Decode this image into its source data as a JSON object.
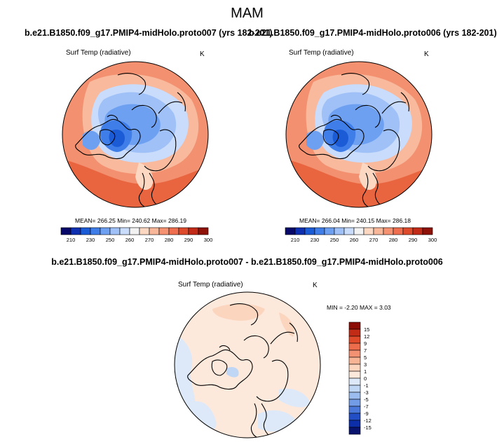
{
  "season": "MAM",
  "panels": [
    {
      "case_title": "b.e21.B1850.f09_g17.PMIP4-midHolo.proto007 (yrs 182-201)",
      "variable": "Surf Temp (radiative)",
      "units": "K",
      "stats": "MEAN= 266.25  Min= 240.62  Max= 286.19"
    },
    {
      "case_title": "b.e21.B1850.f09_g17.PMIP4-midHolo.proto006 (yrs 182-201)",
      "variable": "Surf Temp (radiative)",
      "units": "K",
      "stats": "MEAN= 266.04  Min= 240.15  Max= 286.18"
    }
  ],
  "absolute_colorbar": {
    "colors": [
      "#08086b",
      "#0d2fb0",
      "#1c5bd6",
      "#3f7ee8",
      "#6ea0f2",
      "#9fc1f8",
      "#c9dcfb",
      "#f2f2f2",
      "#fcd8c3",
      "#f9b79a",
      "#f59272",
      "#ee6e4f",
      "#de4a2c",
      "#c22b17",
      "#8f1209"
    ],
    "labels": [
      "210",
      "230",
      "250",
      "260",
      "270",
      "280",
      "290",
      "300"
    ]
  },
  "difference": {
    "title": "b.e21.B1850.f09_g17.PMIP4-midHolo.proto007 - b.e21.B1850.f09_g17.PMIP4-midHolo.proto006",
    "variable": "Surf Temp (radiative)",
    "units": "K",
    "stats": "MIN =  -2.20 MAX =   3.03",
    "colorbar": {
      "colors": [
        "#8c0d05",
        "#c22c16",
        "#de4a2a",
        "#ed6c4c",
        "#f39272",
        "#f8b596",
        "#fcd5be",
        "#fde9dc",
        "#dde9f8",
        "#c0d6f5",
        "#9bbcee",
        "#739ce6",
        "#4a78da",
        "#234fc6",
        "#0c2ea8",
        "#08146e"
      ],
      "labels": [
        "15",
        "12",
        "9",
        "7",
        "5",
        "3",
        "1",
        "0",
        "-1",
        "-3",
        "-5",
        "-7",
        "-9",
        "-12",
        "-15"
      ]
    }
  }
}
